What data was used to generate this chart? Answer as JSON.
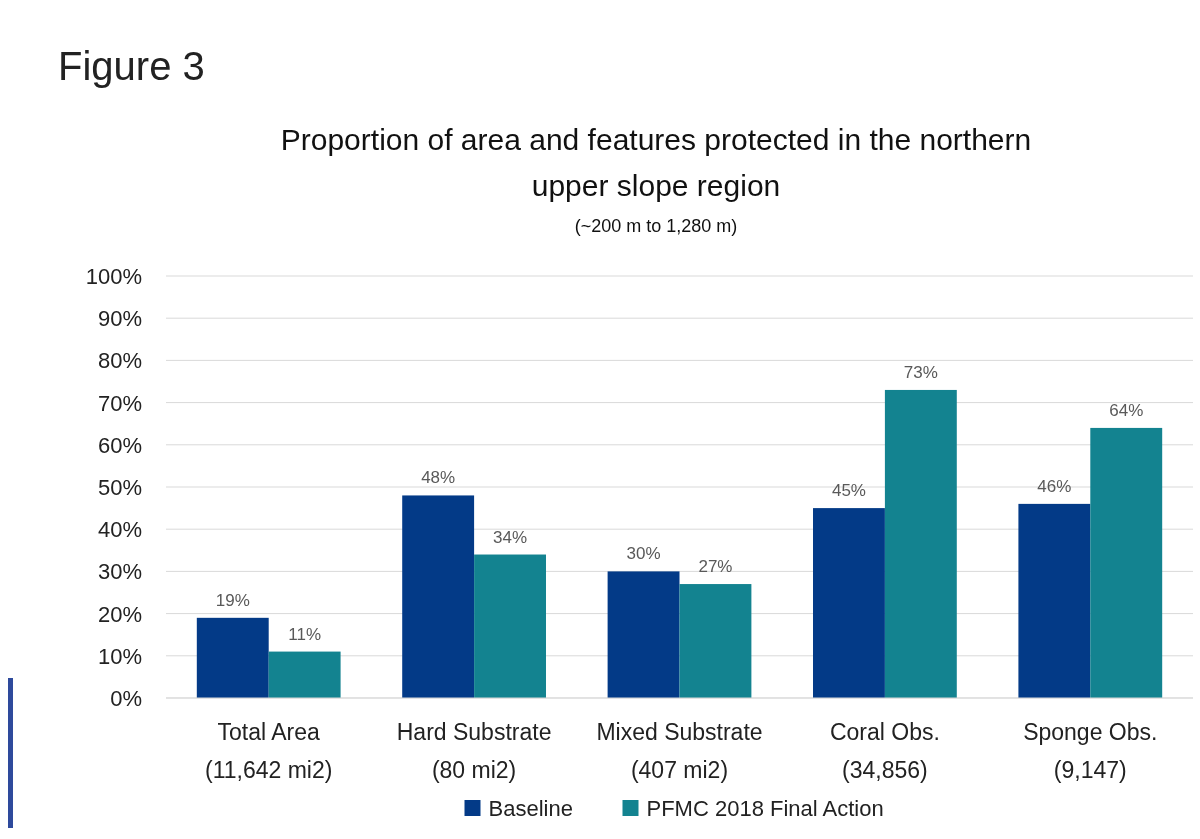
{
  "chart_data": {
    "type": "bar",
    "title": "Proportion of area and features protected in the northern upper slope region",
    "subtitle": "(~200 m to 1,280 m)",
    "annotations": [
      "Figure 3"
    ],
    "categories": [
      "Total Area\n(11,642 mi2)",
      "Hard Substrate\n(80 mi2)",
      "Mixed Substrate\n(407 mi2)",
      "Coral Obs.\n(34,856)",
      "Sponge Obs.\n(9,147)"
    ],
    "series": [
      {
        "name": "Baseline",
        "color": "#033a87",
        "values": [
          19,
          48,
          30,
          45,
          46
        ],
        "value_labels": [
          "19%",
          "48%",
          "30%",
          "45%",
          "46%"
        ]
      },
      {
        "name": "PFMC 2018 Final Action",
        "color": "#138390",
        "values": [
          11,
          34,
          27,
          73,
          64
        ],
        "value_labels": [
          "11%",
          "34%",
          "27%",
          "73%",
          "64%"
        ]
      }
    ],
    "ylim": [
      0,
      100
    ],
    "yticks": [
      {
        "value": 0,
        "label": "0%"
      },
      {
        "value": 10,
        "label": "10%"
      },
      {
        "value": 20,
        "label": "20%"
      },
      {
        "value": 30,
        "label": "30%"
      },
      {
        "value": 40,
        "label": "40%"
      },
      {
        "value": 50,
        "label": "50%"
      },
      {
        "value": 60,
        "label": "60%"
      },
      {
        "value": 70,
        "label": "70%"
      },
      {
        "value": 80,
        "label": "80%"
      },
      {
        "value": 90,
        "label": "90%"
      },
      {
        "value": 100,
        "label": "100%"
      }
    ],
    "grid": "y",
    "legend": "bottom"
  }
}
